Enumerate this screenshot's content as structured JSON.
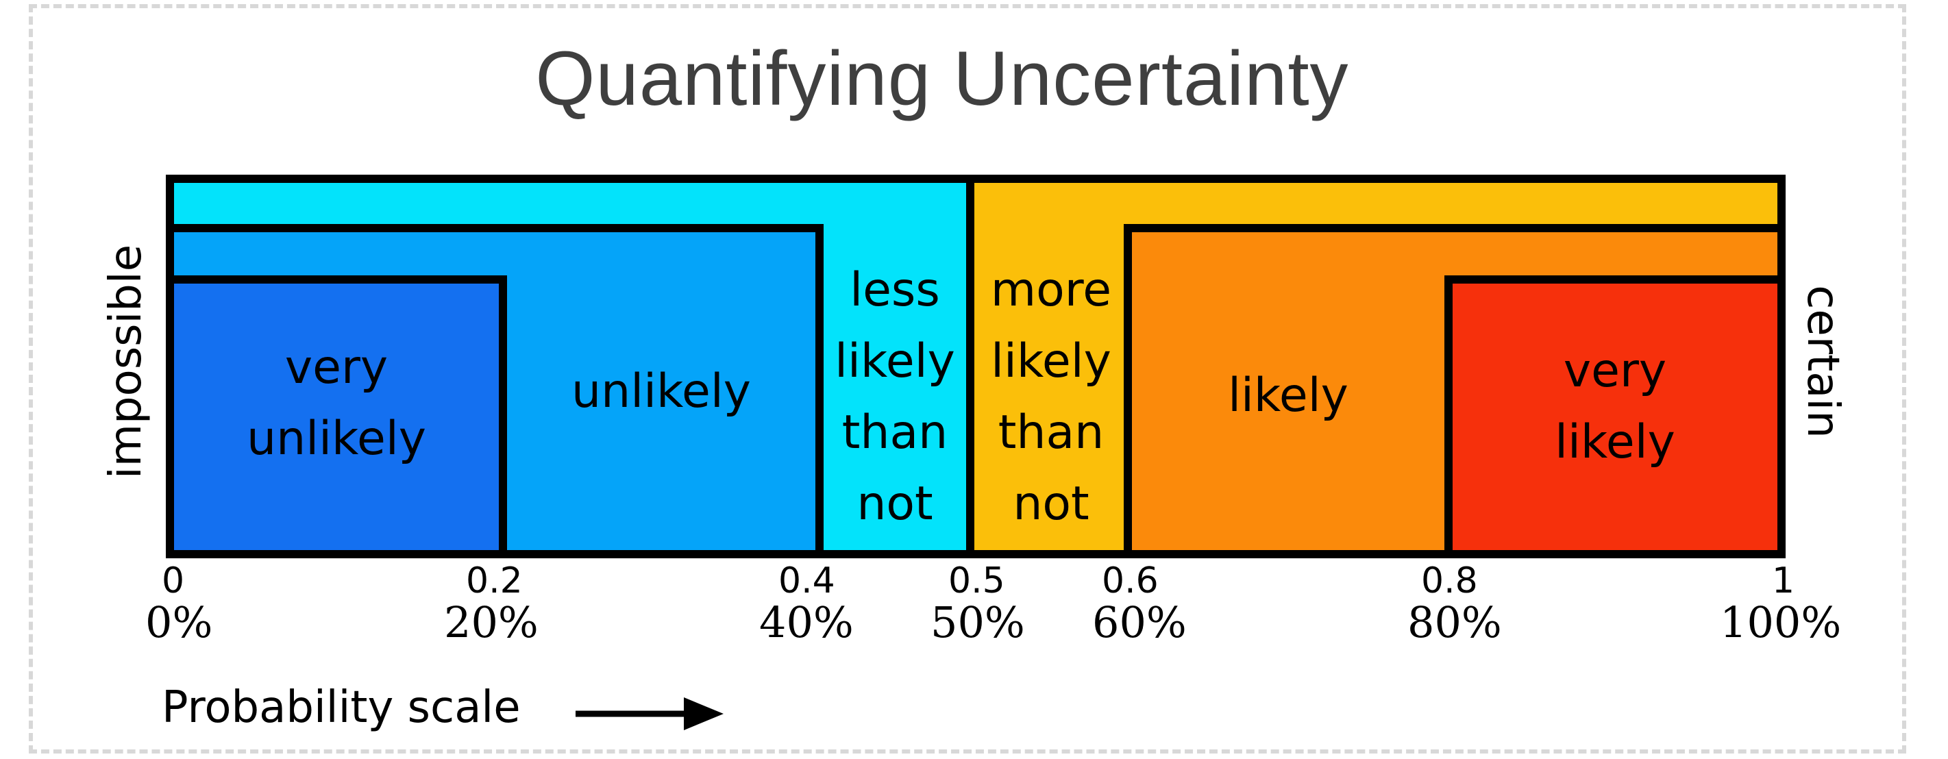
{
  "title": "Quantifying Uncertainty",
  "colors": {
    "very_unlikely": "#1470f0",
    "unlikely": "#05a4f9",
    "less_likely_than_not": "#03e3fb",
    "more_likely_than_not": "#fbbf0a",
    "likely": "#fb8a0b",
    "very_likely": "#f6300c"
  },
  "regions": [
    {
      "label": "very unlikely",
      "from": 0,
      "to": 0.2
    },
    {
      "label": "unlikely",
      "from": 0,
      "to": 0.4
    },
    {
      "label": "less likely than not",
      "from": 0,
      "to": 0.5
    },
    {
      "label": "more likely than not",
      "from": 0.5,
      "to": 1
    },
    {
      "label": "likely",
      "from": 0.6,
      "to": 1
    },
    {
      "label": "very likely",
      "from": 0.8,
      "to": 1
    }
  ],
  "labels": {
    "very_unlikely": [
      "very",
      "unlikely"
    ],
    "unlikely": [
      "unlikely"
    ],
    "less_likely": [
      "less",
      "likely",
      "than",
      "not"
    ],
    "more_likely": [
      "more",
      "likely",
      "than",
      "not"
    ],
    "likely": [
      "likely"
    ],
    "very_likely": [
      "very",
      "likely"
    ]
  },
  "endpoints": {
    "left": "impossible",
    "right": "certain"
  },
  "ticks": [
    {
      "value": "0",
      "percent": "0%"
    },
    {
      "value": "0.2",
      "percent": "20%"
    },
    {
      "value": "0.4",
      "percent": "40%"
    },
    {
      "value": "0.5",
      "percent": "50%"
    },
    {
      "value": "0.6",
      "percent": "60%"
    },
    {
      "value": "0.8",
      "percent": "80%"
    },
    {
      "value": "1",
      "percent": "100%"
    }
  ],
  "axis_title": "Probability scale",
  "arrow_icon": "right-arrow-icon"
}
